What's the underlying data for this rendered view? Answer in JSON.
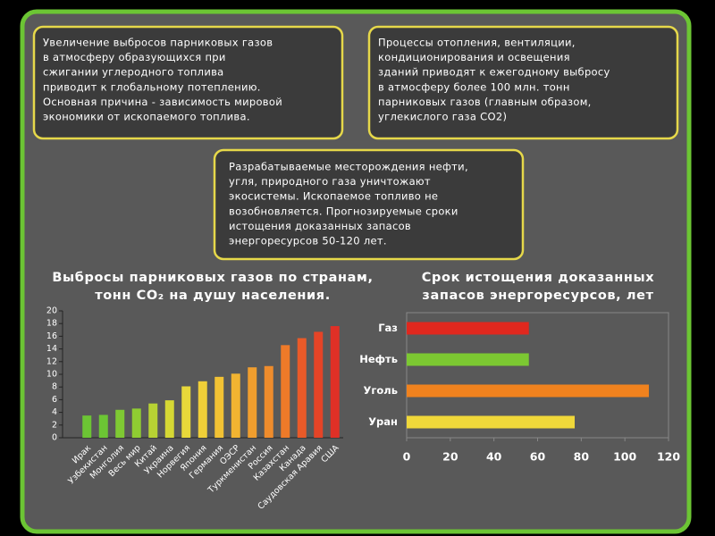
{
  "boxes": [
    {
      "lines": [
        "Увеличение выбросов парниковых газов",
        "в атмосферу образующихся при",
        "сжигании углеродного топлива",
        "приводит к глобальному потеплению.",
        "Основная причина - зависимость мировой",
        "экономики от ископаемого топлива."
      ]
    },
    {
      "lines": [
        "Процессы отопления, вентиляции,",
        "кондиционирования и освещения",
        "зданий приводят к ежегодному выбросу",
        "в атмосферу более 100 млн. тонн",
        "парниковых газов (главным образом,",
        "углекислого газа CO2)"
      ]
    },
    {
      "lines": [
        "Разрабатываемые месторождения нефти,",
        "угля, природного газа уничтожают",
        "экосистемы. Ископаемое топливо не",
        "возобновляется. Прогнозируемые сроки",
        "истощения доказанных запасов",
        "энергоресурсов 50-120 лет."
      ]
    }
  ],
  "chart_data": [
    {
      "type": "bar",
      "title": [
        "Выбросы парниковых газов по странам,",
        "тонн CO₂ на душу населения."
      ],
      "categories": [
        "Ирак",
        "Узбекистан",
        "Монголия",
        "Весь мир",
        "Китай",
        "Украина",
        "Норвегия",
        "Япония",
        "Германия",
        "ОЭСР",
        "Туркменистан",
        "Россия",
        "Казахстан",
        "Канада",
        "Саудовская Аравия",
        "США"
      ],
      "values": [
        3.5,
        3.6,
        4.4,
        4.6,
        5.4,
        5.9,
        8.1,
        8.9,
        9.6,
        10.1,
        11.1,
        11.3,
        14.6,
        15.7,
        16.7,
        17.6
      ],
      "colors": [
        "#6cc534",
        "#6cc534",
        "#7fc933",
        "#8fcc32",
        "#b7d233",
        "#d6d834",
        "#e8d83a",
        "#f0cf38",
        "#f2c234",
        "#f2b431",
        "#f09e2e",
        "#ef8c2c",
        "#ee7a29",
        "#ea5a28",
        "#e54427",
        "#e03026"
      ],
      "ylim": [
        0,
        20
      ],
      "yticks": [
        0,
        2,
        4,
        6,
        8,
        10,
        12,
        14,
        16,
        18,
        20
      ]
    },
    {
      "type": "barh",
      "title": [
        "Срок истощения доказанных",
        "запасов энергоресурсов, лет"
      ],
      "categories": [
        "Газ",
        "Нефть",
        "Уголь",
        "Уран"
      ],
      "values": [
        56,
        56,
        111,
        77
      ],
      "colors": [
        "#e0281e",
        "#7cc832",
        "#f0821e",
        "#f0d83a"
      ],
      "xlim": [
        0,
        120
      ],
      "xticks": [
        0,
        20,
        40,
        60,
        80,
        100,
        120
      ]
    }
  ]
}
